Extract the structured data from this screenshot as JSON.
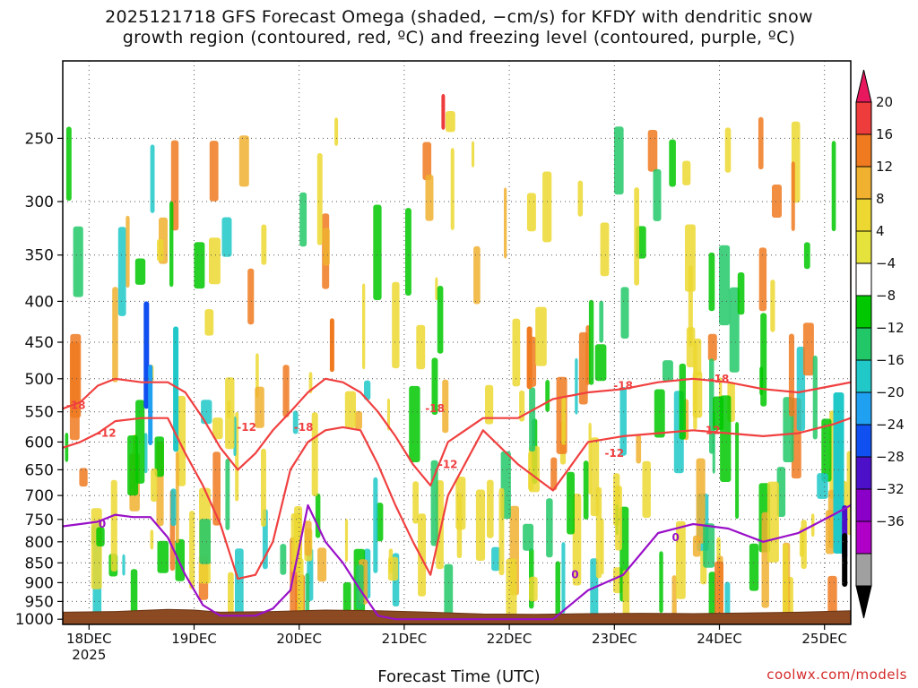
{
  "chart_data": {
    "type": "heatmap",
    "title_line1": "2025121718 GFS Forecast Omega (shaded, −cm/s) for KFDY with dendritic snow",
    "title_line2": "growth region (contoured, red, ºC) and freezing level (contoured, purple, ºC)",
    "xlabel": "Forecast Time (UTC)",
    "credit": "coolwx.com/models",
    "x_ticks": [
      "18DEC",
      "19DEC",
      "20DEC",
      "21DEC",
      "22DEC",
      "23DEC",
      "24DEC",
      "25DEC"
    ],
    "x_year": "2025",
    "x_range_hours": [
      0,
      180
    ],
    "y_ticks": [
      250,
      300,
      350,
      400,
      450,
      500,
      550,
      600,
      650,
      700,
      750,
      800,
      850,
      900,
      950,
      1000
    ],
    "y_range_hpa": [
      200,
      1015
    ],
    "colorbar": {
      "labels": [
        "20",
        "16",
        "12",
        "8",
        "4",
        "−4",
        "−8",
        "−12",
        "−16",
        "−20",
        "−24",
        "−28",
        "−32",
        "−36"
      ],
      "colors": [
        "#e8185e",
        "#ee3b3b",
        "#f07a20",
        "#f0b030",
        "#ecd830",
        "#e6e23c",
        "#ffffff",
        "#00c800",
        "#22c868",
        "#20c8c8",
        "#20a0f0",
        "#1050f0",
        "#4b10c8",
        "#8b00c8",
        "#b000c8",
        "#a0a0a0",
        "#000000"
      ]
    },
    "contour_labels": {
      "dgz_upper": "-18",
      "dgz_lower": "-12",
      "freezing": "0"
    },
    "series": [
      {
        "name": "-18C isotherm (red)",
        "x": [
          0,
          4,
          8,
          12,
          18,
          24,
          28,
          32,
          36,
          40,
          44,
          48,
          52,
          56,
          60,
          64,
          68,
          72,
          76,
          80,
          84,
          88,
          96,
          104,
          112,
          120,
          128,
          136,
          144,
          152,
          160,
          168,
          176,
          180
        ],
        "p": [
          545,
          535,
          510,
          500,
          505,
          505,
          520,
          560,
          610,
          650,
          620,
          580,
          550,
          520,
          500,
          505,
          520,
          550,
          590,
          640,
          680,
          600,
          560,
          560,
          530,
          520,
          515,
          505,
          500,
          505,
          515,
          520,
          510,
          505
        ]
      },
      {
        "name": "-12C isotherm (red)",
        "x": [
          0,
          4,
          8,
          12,
          18,
          24,
          28,
          32,
          36,
          40,
          44,
          48,
          52,
          56,
          60,
          64,
          68,
          72,
          76,
          80,
          84,
          88,
          96,
          104,
          112,
          120,
          128,
          136,
          144,
          152,
          160,
          168,
          176,
          180
        ],
        "p": [
          610,
          600,
          585,
          565,
          560,
          560,
          620,
          680,
          760,
          890,
          880,
          800,
          650,
          600,
          580,
          575,
          580,
          640,
          720,
          800,
          880,
          700,
          580,
          640,
          690,
          600,
          590,
          585,
          580,
          585,
          590,
          585,
          570,
          560
        ]
      },
      {
        "name": "0C freezing level (purple)",
        "x": [
          0,
          4,
          8,
          12,
          16,
          20,
          24,
          28,
          32,
          36,
          40,
          44,
          48,
          52,
          56,
          60,
          64,
          68,
          72,
          76,
          80,
          84,
          88,
          96,
          104,
          112,
          120,
          128,
          136,
          144,
          152,
          160,
          168,
          176,
          180
        ],
        "p": [
          765,
          760,
          755,
          740,
          745,
          745,
          790,
          880,
          960,
          990,
          990,
          990,
          970,
          920,
          720,
          800,
          850,
          920,
          990,
          1000,
          1000,
          1000,
          1000,
          1000,
          1000,
          1000,
          920,
          880,
          780,
          760,
          770,
          800,
          780,
          740,
          720
        ]
      }
    ]
  }
}
